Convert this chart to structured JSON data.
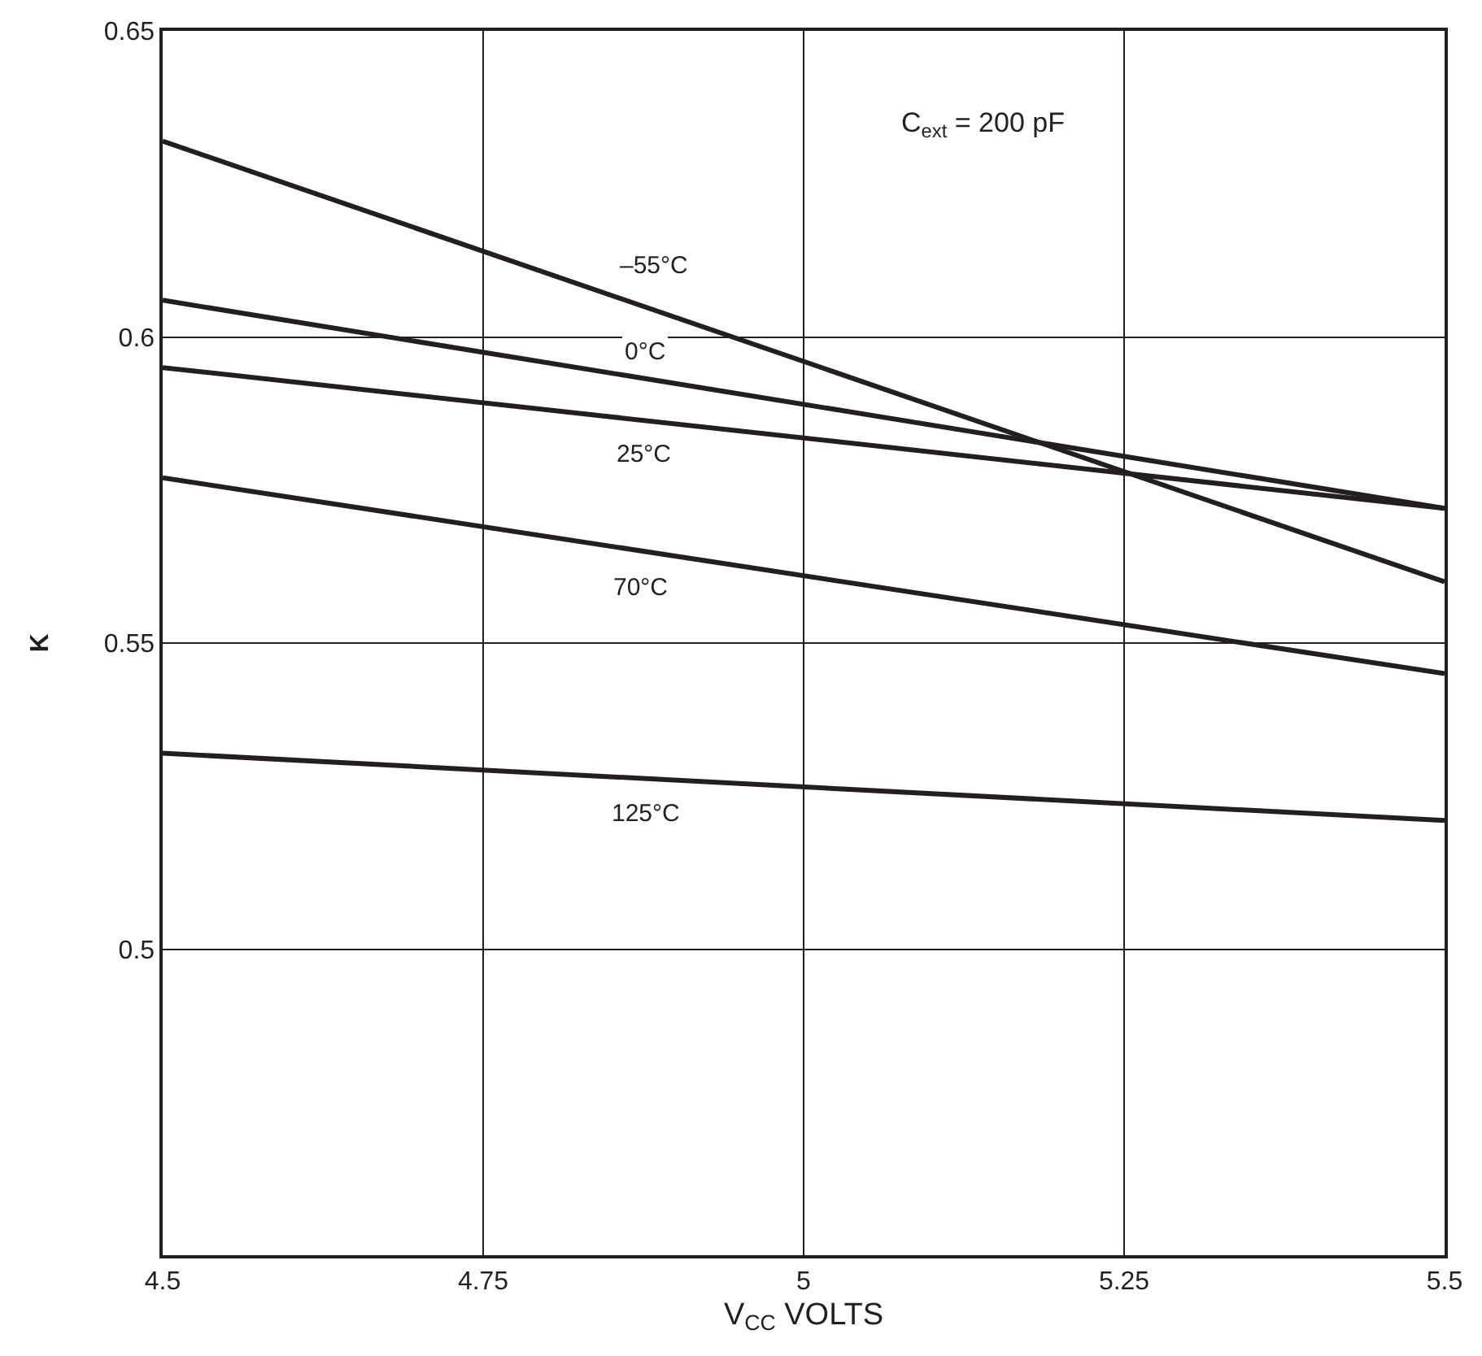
{
  "chart_data": {
    "type": "line",
    "xlabel": "V$_{CC}$ VOLTS",
    "ylabel": "K",
    "x": [
      4.5,
      5.5
    ],
    "series": [
      {
        "color": "#231f20",
        "values": [
          0.632,
          0.56
        ]
      },
      {
        "color": "#231f20",
        "values": [
          0.606,
          0.572
        ]
      },
      {
        "color": "#231f20",
        "values": [
          0.595,
          0.572
        ]
      },
      {
        "color": "#231f20",
        "values": [
          0.577,
          0.545
        ]
      },
      {
        "color": "#231f20",
        "values": [
          0.532,
          0.521
        ]
      }
    ],
    "xlim": [
      4.5,
      5.5
    ],
    "xticks": [
      4.5,
      4.75,
      5,
      5.25,
      5.5
    ],
    "ylim": [
      0.45,
      0.65
    ],
    "yticks": [
      {
        "value": 0.45,
        "label": null
      },
      0.5,
      0.55,
      0.6,
      0.65
    ],
    "grid": true,
    "marker": "none",
    "line_style": "solid",
    "annotations": [
      {
        "text": "–55°C",
        "x": 4.883,
        "y": 0.6044
      },
      {
        "text": "0°C",
        "x": 4.876,
        "y": 0.5932
      },
      {
        "text": "25°C",
        "x": 4.876,
        "y": 0.5864
      },
      {
        "text": "70°C",
        "x": 4.873,
        "y": 0.5651
      },
      {
        "text": "125°C",
        "x": 4.877,
        "y": 0.5279
      },
      "C$_{ext}$ = 200 pF"
    ]
  }
}
